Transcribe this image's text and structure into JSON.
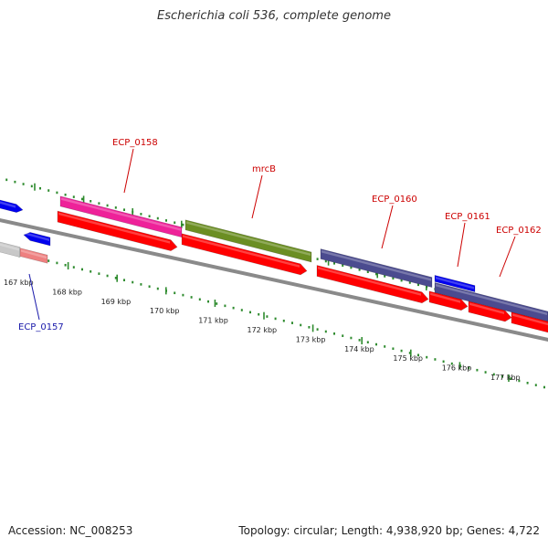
{
  "title": "Escherichia coli 536, complete genome",
  "footer": {
    "accession": "Accession: NC_008253",
    "summary": "Topology: circular; Length: 4,938,920 bp; Genes: 4,722"
  },
  "colors": {
    "backbone": "#8a8a8a",
    "tick": "#2e8b2e",
    "label_red": "#cc0000",
    "label_blue": "#1a1aaa",
    "cds": "#ff0000",
    "magenta": "#ee2299",
    "olive": "#6b8e23",
    "slate": "#4b4b8f",
    "blue": "#0000ee",
    "grey": "#c8c8c8",
    "salmon": "#ee8080"
  },
  "axis": {
    "tick_labels": [
      "167 kbp",
      "168 kbp",
      "169 kbp",
      "170 kbp",
      "171 kbp",
      "172 kbp",
      "173 kbp",
      "174 kbp",
      "175 kbp",
      "176 kbp",
      "177 kbp"
    ]
  },
  "genes": [
    {
      "name": "ECP_0157",
      "color_key": "label_blue"
    },
    {
      "name": "ECP_0158",
      "color_key": "label_red"
    },
    {
      "name": "mrcB",
      "color_key": "label_red"
    },
    {
      "name": "ECP_0160",
      "color_key": "label_red"
    },
    {
      "name": "ECP_0161",
      "color_key": "label_red"
    },
    {
      "name": "ECP_0162",
      "color_key": "label_red"
    }
  ]
}
